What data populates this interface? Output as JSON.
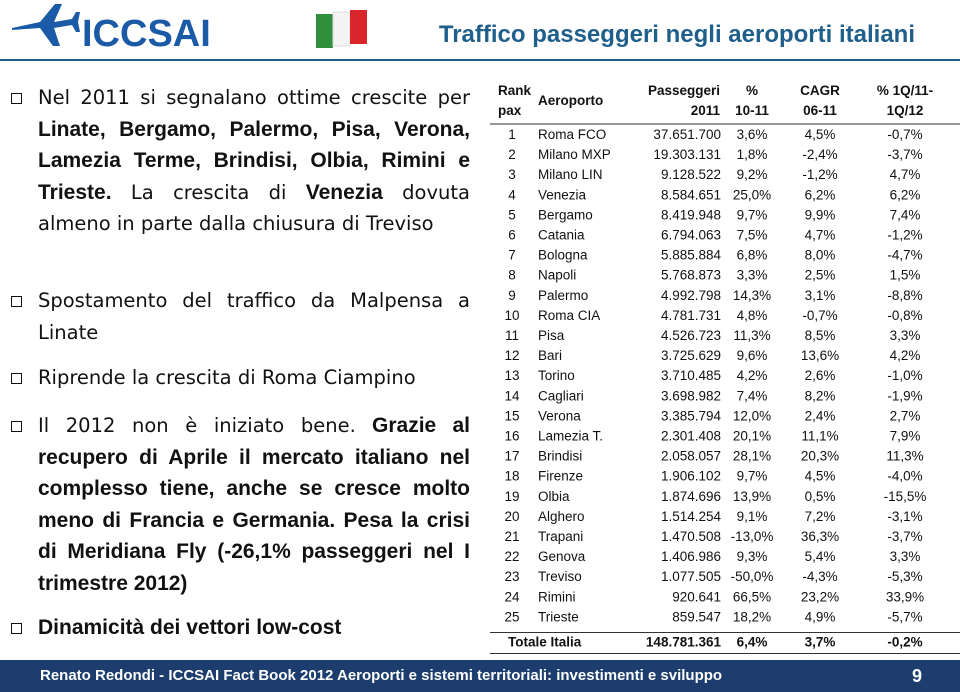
{
  "header": {
    "logo": "ICCSAI",
    "title": "Traffico passeggeri negli aeroporti italiani"
  },
  "bullets": [
    {
      "runs": [
        {
          "text": "Nel 2011 si segnalano ottime crescite per ",
          "bold": false
        },
        {
          "text": "Linate, Bergamo, Palermo, Pisa, Verona, Lamezia Terme, Brindisi, Olbia, Rimini e Trieste.",
          "bold": true
        },
        {
          "text": " La crescita di ",
          "bold": false
        },
        {
          "text": "Venezia",
          "bold": true
        },
        {
          "text": " dovuta almeno in parte dalla chiusura di Treviso",
          "bold": false
        }
      ]
    },
    {
      "runs": [
        {
          "text": "Spostamento del traffico da Malpensa a Linate",
          "bold": false
        }
      ]
    },
    {
      "runs": [
        {
          "text": "Riprende la crescita di Roma Ciampino",
          "bold": false
        }
      ]
    },
    {
      "runs": [
        {
          "text": "Il 2012 non è iniziato bene.",
          "bold": false
        },
        {
          "text": " Grazie al recupero di Aprile il mercato italiano nel complesso tiene, anche se cresce molto meno di Francia e Germania. Pesa la crisi di Meridiana Fly (-26,1% passeggeri nel I trimestre 2012)",
          "bold": true
        }
      ]
    },
    {
      "runs": [
        {
          "text": "Dinamicità dei vettori low-cost",
          "bold": true
        }
      ]
    }
  ],
  "table": {
    "header": [
      [
        "Rank",
        "pax"
      ],
      [
        "Aeroporto"
      ],
      [
        "Passeggeri",
        "2011"
      ],
      [
        "%",
        "10-11"
      ],
      [
        "CAGR",
        "06-11"
      ],
      [
        "% 1Q/11-",
        "1Q/12"
      ]
    ],
    "rows": [
      [
        "1",
        "Roma FCO",
        "37.651.700",
        "3,6%",
        "4,5%",
        "-0,7%"
      ],
      [
        "2",
        "Milano MXP",
        "19.303.131",
        "1,8%",
        "-2,4%",
        "-3,7%"
      ],
      [
        "3",
        "Milano LIN",
        "9.128.522",
        "9,2%",
        "-1,2%",
        "4,7%"
      ],
      [
        "4",
        "Venezia",
        "8.584.651",
        "25,0%",
        "6,2%",
        "6,2%"
      ],
      [
        "5",
        "Bergamo",
        "8.419.948",
        "9,7%",
        "9,9%",
        "7,4%"
      ],
      [
        "6",
        "Catania",
        "6.794.063",
        "7,5%",
        "4,7%",
        "-1,2%"
      ],
      [
        "7",
        "Bologna",
        "5.885.884",
        "6,8%",
        "8,0%",
        "-4,7%"
      ],
      [
        "8",
        "Napoli",
        "5.768.873",
        "3,3%",
        "2,5%",
        "1,5%"
      ],
      [
        "9",
        "Palermo",
        "4.992.798",
        "14,3%",
        "3,1%",
        "-8,8%"
      ],
      [
        "10",
        "Roma CIA",
        "4.781.731",
        "4,8%",
        "-0,7%",
        "-0,8%"
      ],
      [
        "11",
        "Pisa",
        "4.526.723",
        "11,3%",
        "8,5%",
        "3,3%"
      ],
      [
        "12",
        "Bari",
        "3.725.629",
        "9,6%",
        "13,6%",
        "4,2%"
      ],
      [
        "13",
        "Torino",
        "3.710.485",
        "4,2%",
        "2,6%",
        "-1,0%"
      ],
      [
        "14",
        "Cagliari",
        "3.698.982",
        "7,4%",
        "8,2%",
        "-1,9%"
      ],
      [
        "15",
        "Verona",
        "3.385.794",
        "12,0%",
        "2,4%",
        "2,7%"
      ],
      [
        "16",
        "Lamezia T.",
        "2.301.408",
        "20,1%",
        "11,1%",
        "7,9%"
      ],
      [
        "17",
        "Brindisi",
        "2.058.057",
        "28,1%",
        "20,3%",
        "11,3%"
      ],
      [
        "18",
        "Firenze",
        "1.906.102",
        "9,7%",
        "4,5%",
        "-4,0%"
      ],
      [
        "19",
        "Olbia",
        "1.874.696",
        "13,9%",
        "0,5%",
        "-15,5%"
      ],
      [
        "20",
        "Alghero",
        "1.514.254",
        "9,1%",
        "7,2%",
        "-3,1%"
      ],
      [
        "21",
        "Trapani",
        "1.470.508",
        "-13,0%",
        "36,3%",
        "-3,7%"
      ],
      [
        "22",
        "Genova",
        "1.406.986",
        "9,3%",
        "5,4%",
        "3,3%"
      ],
      [
        "23",
        "Treviso",
        "1.077.505",
        "-50,0%",
        "-4,3%",
        "-5,3%"
      ],
      [
        "24",
        "Rimini",
        "920.641",
        "66,5%",
        "23,2%",
        "33,9%"
      ],
      [
        "25",
        "Trieste",
        "859.547",
        "18,2%",
        "4,9%",
        "-5,7%"
      ]
    ],
    "total": [
      "Totale Italia",
      "148.781.361",
      "6,4%",
      "3,7%",
      "-0,2%"
    ]
  },
  "footer": {
    "text": "Renato Redondi - ICCSAI Fact Book 2012 Aeroporti e sistemi territoriali: investimenti e sviluppo",
    "page": "9"
  }
}
